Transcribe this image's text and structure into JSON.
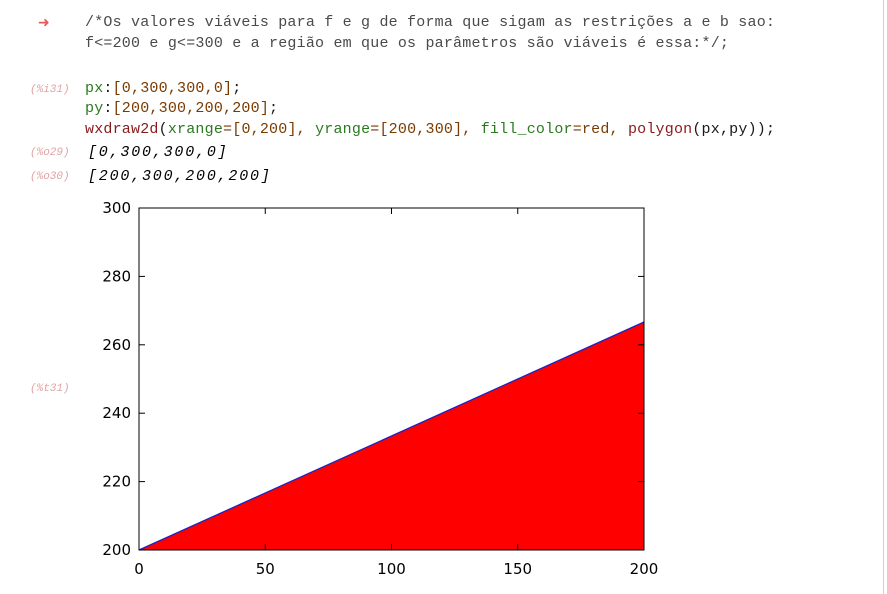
{
  "comment": {
    "arrow_glyph": "➜",
    "line1": "/*Os valores viáveis para f e g de forma que sigam as restrições a e b sao:",
    "line2": "f<=200 e g<=300 e a região em que os parâmetros são viáveis é essa:*/;"
  },
  "input_cell": {
    "label": "(%i31)",
    "line1": {
      "var": "px",
      "sep": ":",
      "value": "[0,300,300,0]",
      "end": ";"
    },
    "line2": {
      "var": "py",
      "sep": ":",
      "value": "[200,300,200,200]",
      "end": ";"
    },
    "line3": {
      "fn": "wxdraw2d",
      "open": "(",
      "arg1_key": "xrange",
      "arg1_val": "=[0,200], ",
      "arg2_key": "yrange",
      "arg2_val": "=[200,300], ",
      "arg3_key": "fill_color",
      "arg3_val": "=red, ",
      "arg4_fn": "polygon",
      "arg4_args": "(px,py)",
      "close": ");"
    }
  },
  "outputs": [
    {
      "label": "(%o29)",
      "value": "[0,300,300,0]"
    },
    {
      "label": "(%o30)",
      "value": "[200,300,200,200]"
    }
  ],
  "plot_label": "(%t31)",
  "chart_data": {
    "type": "area",
    "x": [
      0,
      200
    ],
    "series": [
      {
        "values": [
          200,
          266.67
        ],
        "fill_color": "#ff0000",
        "line_color": "#2020c0"
      }
    ],
    "xlim": [
      0,
      200
    ],
    "ylim": [
      200,
      300
    ],
    "xticks": [
      0,
      50,
      100,
      150,
      200
    ],
    "yticks": [
      200,
      220,
      240,
      260,
      280,
      300
    ],
    "xtick_labels": [
      "0",
      "50",
      "100",
      "150",
      "200"
    ],
    "ytick_labels": [
      "200",
      "220",
      "240",
      "260",
      "280",
      "300"
    ],
    "grid": false,
    "title": "",
    "xlabel": "",
    "ylabel": ""
  },
  "colors": {
    "arrow": "#e15a5a",
    "label": "#e0a3a3",
    "fill": "#ff0000",
    "edge": "#2020c0"
  }
}
